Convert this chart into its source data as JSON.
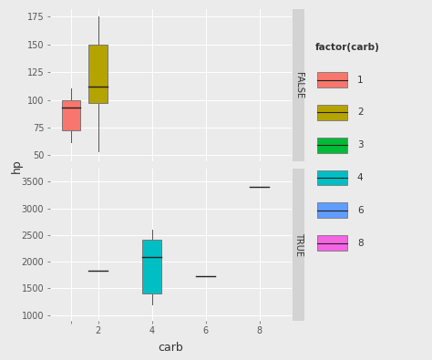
{
  "title": "",
  "xlabel": "carb",
  "ylabel": "hp",
  "facet_labels": [
    "FALSE",
    "TRUE"
  ],
  "legend_title": "factor(carb)",
  "legend_items": [
    "1",
    "2",
    "3",
    "4",
    "6",
    "8"
  ],
  "legend_colors": [
    "#F8766D",
    "#B5A300",
    "#00BA38",
    "#00BFC4",
    "#619CFF",
    "#F564E3"
  ],
  "bg_color": "#EBEBEB",
  "grid_color": "#FFFFFF",
  "facet_strip_bg": "#D3D3D3",
  "false_panel": {
    "carb1_box": {
      "x": 1,
      "q1": 72.5,
      "median": 93.0,
      "q3": 100.0,
      "whisker_low": 62.0,
      "whisker_high": 110.0,
      "color": "#F8766D"
    },
    "carb2_box": {
      "x": 2,
      "q1": 97.5,
      "median": 112.0,
      "q3": 150.0,
      "whisker_low": 54.0,
      "whisker_high": 175.0,
      "color": "#B5A300"
    }
  },
  "true_panel": {
    "carb2_line": {
      "x": 2,
      "val": 1835.0
    },
    "carb4_box": {
      "x": 4,
      "q1": 1400.0,
      "median": 2090.0,
      "q3": 2420.0,
      "whisker_low": 1200.0,
      "whisker_high": 2600.0,
      "color": "#00BFC4"
    },
    "carb6_line": {
      "x": 6,
      "val": 1735.0
    },
    "carb8_line": {
      "x": 8,
      "val": 3400.0
    }
  },
  "false_ylim": [
    45,
    182
  ],
  "false_yticks": [
    50,
    75,
    100,
    125,
    150,
    175
  ],
  "true_ylim": [
    900,
    3750
  ],
  "true_yticks": [
    1000,
    1500,
    2000,
    2500,
    3000,
    3500
  ],
  "xtick_positions": [
    1,
    2,
    4,
    6,
    8
  ],
  "xticklabels_bottom": [
    "",
    "2",
    "4",
    "6",
    "8"
  ],
  "xlim": [
    0.2,
    9.2
  ],
  "box_width": 0.7,
  "line_halfwidth": 0.35
}
